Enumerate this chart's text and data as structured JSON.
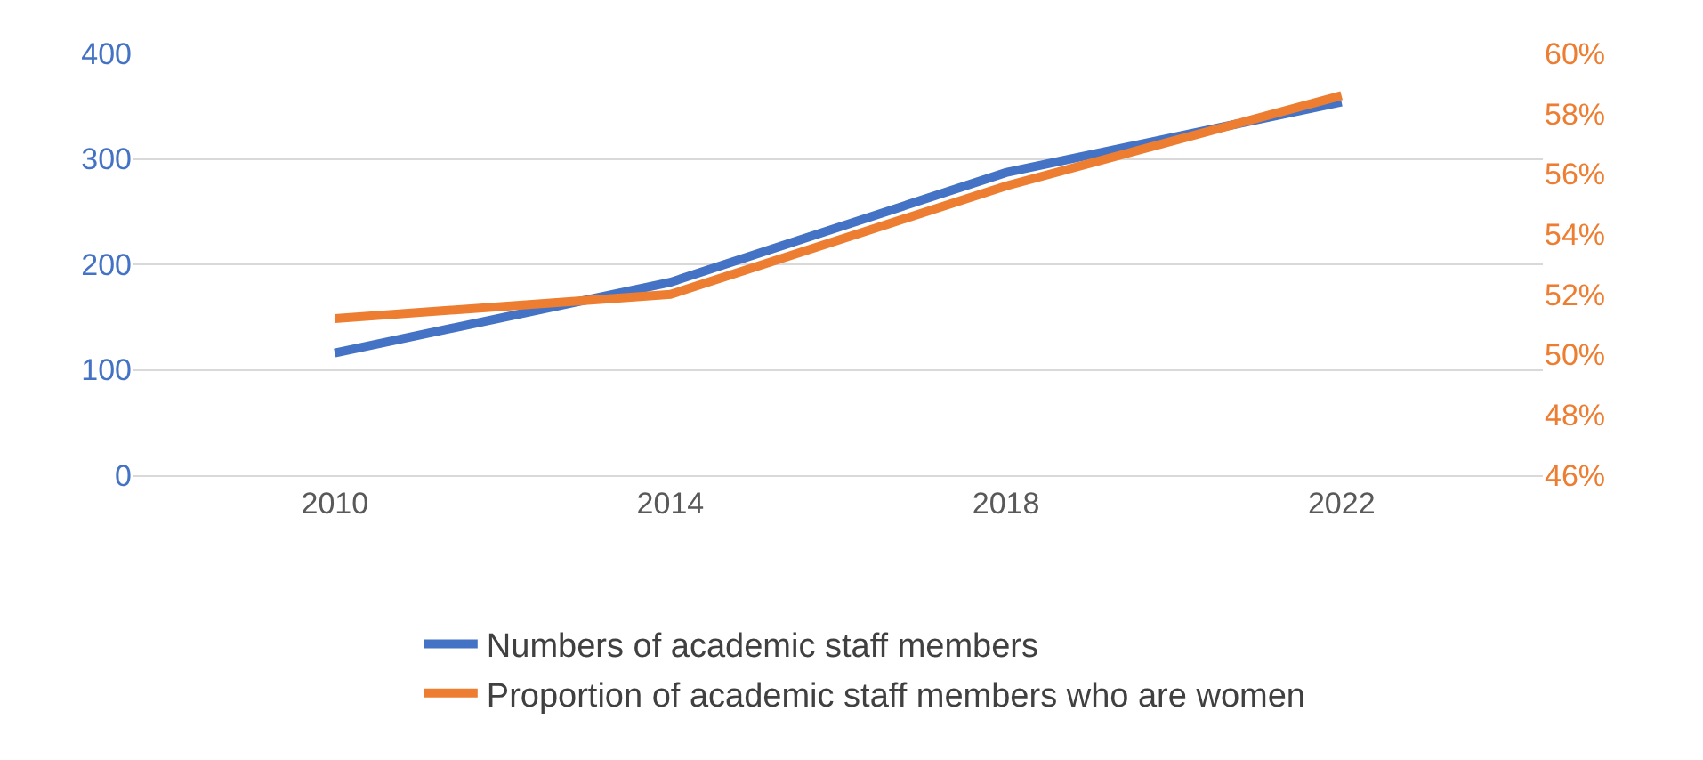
{
  "chart_data": {
    "type": "line",
    "categories": [
      "2010",
      "2014",
      "2018",
      "2022"
    ],
    "series": [
      {
        "name": "Numbers of academic staff members",
        "color": "#4472c4",
        "values": [
          116,
          183,
          287,
          354
        ]
      },
      {
        "name": "Proportion of academic staff members who are women",
        "color": "#ed7d31",
        "values": [
          51.2,
          52.0,
          55.6,
          58.6
        ],
        "axis": "y2"
      }
    ],
    "ylim": [
      0,
      400
    ],
    "yticks": [
      0,
      100,
      200,
      300,
      400
    ],
    "y2lim": [
      46,
      60
    ],
    "y2ticks": [
      {
        "value": 46,
        "label": "46%"
      },
      {
        "value": 48,
        "label": "48%"
      },
      {
        "value": 50,
        "label": "50%"
      },
      {
        "value": 52,
        "label": "52%"
      },
      {
        "value": 54,
        "label": "54%"
      },
      {
        "value": 56,
        "label": "56%"
      },
      {
        "value": 58,
        "label": "58%"
      },
      {
        "value": 60,
        "label": "60%"
      }
    ],
    "grid": "y",
    "legend": "bottom",
    "marker": "none",
    "line_style": "solid"
  }
}
